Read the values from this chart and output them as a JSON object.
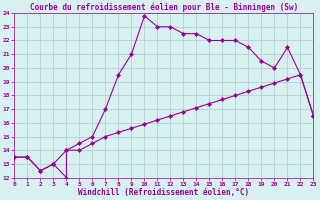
{
  "title": "Courbe du refroidissement éolien pour Ble - Binningen (Sw)",
  "xlabel": "Windchill (Refroidissement éolien,°C)",
  "background_color": "#d8f0f0",
  "grid_color": "#aacccc",
  "line_color": "#990099",
  "xlim": [
    0,
    23
  ],
  "ylim": [
    12,
    24
  ],
  "xticks": [
    0,
    1,
    2,
    3,
    4,
    5,
    6,
    7,
    8,
    9,
    10,
    11,
    12,
    13,
    14,
    15,
    16,
    17,
    18,
    19,
    20,
    21,
    22,
    23
  ],
  "yticks": [
    12,
    13,
    14,
    15,
    16,
    17,
    18,
    19,
    20,
    21,
    22,
    23,
    24
  ],
  "line1_x": [
    0,
    1,
    2,
    3,
    4,
    4,
    5,
    6,
    7,
    8,
    9,
    10,
    11,
    12,
    13,
    14,
    15,
    16,
    17,
    18,
    19,
    20,
    21,
    22,
    23
  ],
  "line1_y": [
    13.5,
    13.5,
    12.5,
    13.0,
    12.0,
    14.0,
    14.5,
    15.0,
    17.0,
    19.5,
    21.0,
    23.8,
    23.0,
    23.0,
    22.5,
    22.5,
    22.0,
    22.0,
    22.0,
    21.5,
    20.5,
    20.0,
    21.5,
    19.5,
    16.5
  ],
  "line2_x": [
    0,
    1,
    2,
    3,
    4,
    5,
    6,
    7,
    8,
    9,
    10,
    11,
    12,
    13,
    14,
    15,
    16,
    17,
    18,
    19,
    20,
    21,
    22,
    23
  ],
  "line2_y": [
    13.5,
    13.5,
    12.5,
    13.0,
    14.0,
    14.0,
    14.5,
    15.0,
    15.3,
    15.6,
    15.9,
    16.2,
    16.5,
    16.8,
    17.1,
    17.4,
    17.7,
    18.0,
    18.3,
    18.6,
    18.9,
    19.2,
    19.5,
    16.5
  ],
  "marker": "D",
  "markersize": 2.0,
  "linewidth": 0.8,
  "font_family": "monospace",
  "title_fontsize": 5.5,
  "xlabel_fontsize": 5.5,
  "tick_fontsize": 4.5
}
